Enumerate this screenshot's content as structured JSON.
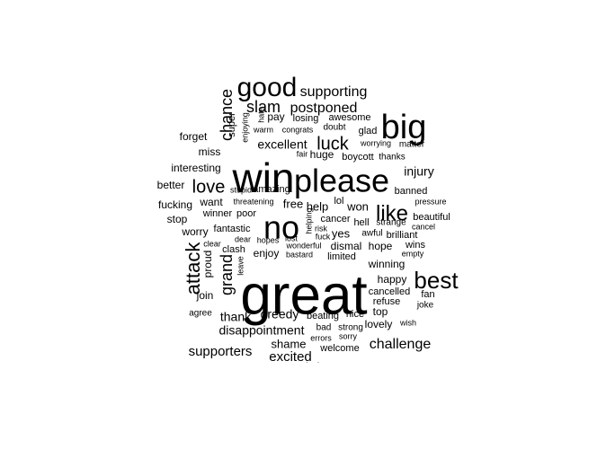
{
  "chart_data": {
    "type": "wordcloud",
    "words": [
      {
        "word": "great",
        "size": 62
      },
      {
        "word": "win",
        "size": 46
      },
      {
        "word": "please",
        "size": 36
      },
      {
        "word": "big",
        "size": 38
      },
      {
        "word": "no",
        "size": 36
      },
      {
        "word": "good",
        "size": 30
      },
      {
        "word": "best",
        "size": 26
      },
      {
        "word": "like",
        "size": 24
      },
      {
        "word": "attack",
        "size": 22
      },
      {
        "word": "luck",
        "size": 20
      },
      {
        "word": "love",
        "size": 20
      },
      {
        "word": "grand",
        "size": 18
      },
      {
        "word": "slam",
        "size": 18
      },
      {
        "word": "chance",
        "size": 18
      },
      {
        "word": "postponed",
        "size": 16
      },
      {
        "word": "supporting",
        "size": 16
      },
      {
        "word": "challenge",
        "size": 16
      },
      {
        "word": "supporters",
        "size": 15
      },
      {
        "word": "excited",
        "size": 15
      },
      {
        "word": "injury",
        "size": 14
      },
      {
        "word": "excellent",
        "size": 14
      },
      {
        "word": "thank",
        "size": 14
      },
      {
        "word": "disappointment",
        "size": 14
      },
      {
        "word": "greedy",
        "size": 14
      },
      {
        "word": "shame",
        "size": 13
      },
      {
        "word": "help",
        "size": 13
      },
      {
        "word": "won",
        "size": 13
      },
      {
        "word": "yes",
        "size": 13
      },
      {
        "word": "free",
        "size": 13
      },
      {
        "word": "happy",
        "size": 12
      },
      {
        "word": "stop",
        "size": 12
      },
      {
        "word": "proud",
        "size": 12
      },
      {
        "word": "lovely",
        "size": 12
      },
      {
        "word": "pay",
        "size": 12
      },
      {
        "word": "forget",
        "size": 12
      },
      {
        "word": "interesting",
        "size": 12
      },
      {
        "word": "better",
        "size": 12
      },
      {
        "word": "worry",
        "size": 12
      },
      {
        "word": "fucking",
        "size": 12
      },
      {
        "word": "want",
        "size": 12
      },
      {
        "word": "enjoy",
        "size": 12
      },
      {
        "word": "join",
        "size": 12
      },
      {
        "word": "winning",
        "size": 12
      },
      {
        "word": "dismal",
        "size": 12
      },
      {
        "word": "hope",
        "size": 12
      },
      {
        "word": "huge",
        "size": 12
      },
      {
        "word": "top",
        "size": 12
      },
      {
        "word": "miss",
        "size": 12
      },
      {
        "word": "amazing",
        "size": 11
      },
      {
        "word": "fantastic",
        "size": 11
      },
      {
        "word": "cancelled",
        "size": 11
      },
      {
        "word": "refuse",
        "size": 11
      },
      {
        "word": "brilliant",
        "size": 11
      },
      {
        "word": "beautiful",
        "size": 11
      },
      {
        "word": "banned",
        "size": 11
      },
      {
        "word": "boycott",
        "size": 11
      },
      {
        "word": "awesome",
        "size": 11
      },
      {
        "word": "losing",
        "size": 11
      },
      {
        "word": "welcome",
        "size": 11
      },
      {
        "word": "nice",
        "size": 11
      },
      {
        "word": "beating",
        "size": 11
      },
      {
        "word": "fan",
        "size": 11
      },
      {
        "word": "joke",
        "size": 10
      },
      {
        "word": "wins",
        "size": 11
      },
      {
        "word": "glad",
        "size": 11
      },
      {
        "word": "super",
        "size": 11
      },
      {
        "word": "poor",
        "size": 11
      },
      {
        "word": "winner",
        "size": 11
      },
      {
        "word": "cancer",
        "size": 11
      },
      {
        "word": "hell",
        "size": 11
      },
      {
        "word": "limited",
        "size": 11
      },
      {
        "word": "lol",
        "size": 11
      },
      {
        "word": "awful",
        "size": 10
      },
      {
        "word": "strange",
        "size": 10
      },
      {
        "word": "agree",
        "size": 10
      },
      {
        "word": "clash",
        "size": 11
      },
      {
        "word": "doubt",
        "size": 10
      },
      {
        "word": "matter",
        "size": 10
      },
      {
        "word": "worrying",
        "size": 9
      },
      {
        "word": "thanks",
        "size": 10
      },
      {
        "word": "pressure",
        "size": 9
      },
      {
        "word": "cancel",
        "size": 9
      },
      {
        "word": "empty",
        "size": 9
      },
      {
        "word": "wish",
        "size": 9
      },
      {
        "word": "sorry",
        "size": 9
      },
      {
        "word": "strong",
        "size": 10
      },
      {
        "word": "bad",
        "size": 10
      },
      {
        "word": "errors",
        "size": 9
      },
      {
        "word": "bastard",
        "size": 9
      },
      {
        "word": "wonderful",
        "size": 9
      },
      {
        "word": "fuck",
        "size": 9
      },
      {
        "word": "risk",
        "size": 9
      },
      {
        "word": "lost",
        "size": 9
      },
      {
        "word": "hopes",
        "size": 9
      },
      {
        "word": "dear",
        "size": 9
      },
      {
        "word": "clear",
        "size": 9
      },
      {
        "word": "stupid",
        "size": 9
      },
      {
        "word": "threatening",
        "size": 9
      },
      {
        "word": "warm",
        "size": 9
      },
      {
        "word": "congrats",
        "size": 9
      },
      {
        "word": "fair",
        "size": 9
      },
      {
        "word": "enjoying",
        "size": 9
      },
      {
        "word": "hate",
        "size": 9
      },
      {
        "word": "helping",
        "size": 9
      },
      {
        "word": "leave",
        "size": 9
      },
      {
        "word": "congratulations",
        "size": 12
      }
    ]
  }
}
